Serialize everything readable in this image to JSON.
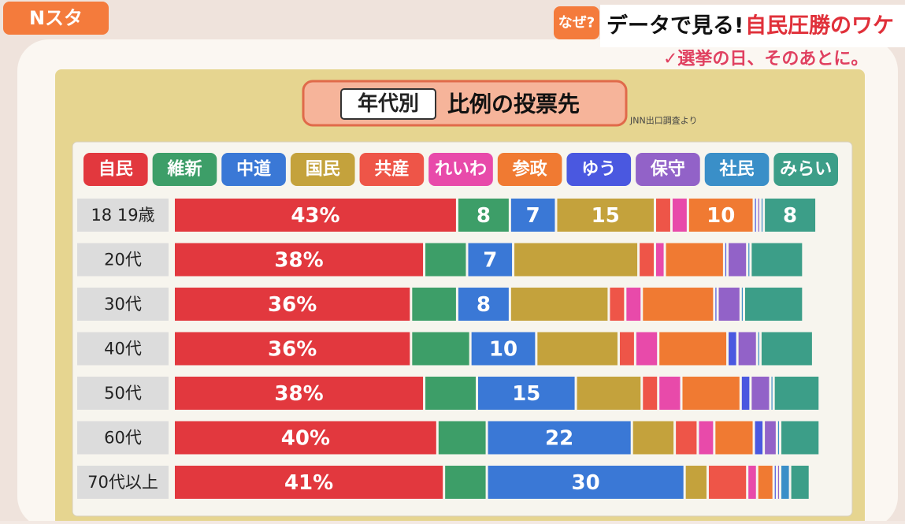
{
  "overlay": {
    "logo": "Nスタ",
    "question": "なぜ?",
    "headline_lead": "データで見る!",
    "headline_accent": "自民圧勝のワケ",
    "tagline": "✓選挙の日、そのあとに。"
  },
  "chart_data": {
    "type": "stacked-bar",
    "orientation": "horizontal",
    "title_tag": "年代別",
    "title": "比例の投票先",
    "source": "JNN出口調査より",
    "categories": [
      "18 19歳",
      "20代",
      "30代",
      "40代",
      "50代",
      "60代",
      "70代以上"
    ],
    "series": [
      {
        "name": "自民",
        "color": "#e2383e",
        "values": [
          43,
          38,
          36,
          36,
          38,
          40,
          41
        ],
        "value_labels": [
          "43%",
          "38%",
          "36%",
          "36%",
          "38%",
          "40%",
          "41%"
        ]
      },
      {
        "name": "維新",
        "color": "#3d9e68",
        "values": [
          8,
          6.5,
          7,
          9,
          8,
          7.5,
          6.5
        ],
        "value_labels": [
          "8",
          null,
          null,
          null,
          null,
          null,
          null
        ]
      },
      {
        "name": "中道",
        "color": "#3a78d6",
        "values": [
          7,
          7,
          8,
          10,
          15,
          22,
          30
        ],
        "value_labels": [
          "7",
          "7",
          "8",
          "10",
          "15",
          "22",
          "30"
        ]
      },
      {
        "name": "国民",
        "color": "#c4a23c",
        "values": [
          15,
          19,
          15,
          12.5,
          10,
          6.5,
          3.5
        ],
        "value_labels": [
          "15",
          null,
          null,
          null,
          null,
          null,
          null
        ]
      },
      {
        "name": "共産",
        "color": "#ee5548",
        "values": [
          2.5,
          2.5,
          2.5,
          2.5,
          2.5,
          3.5,
          6
        ],
        "value_labels": [
          null,
          null,
          null,
          null,
          null,
          null,
          null
        ]
      },
      {
        "name": "れいわ",
        "color": "#e84aaa",
        "values": [
          2.5,
          1.5,
          2.5,
          3.5,
          3.5,
          2.5,
          1.5
        ],
        "value_labels": [
          null,
          null,
          null,
          null,
          null,
          null,
          null
        ]
      },
      {
        "name": "参政",
        "color": "#f07a32",
        "values": [
          10,
          9,
          11,
          10.5,
          9,
          6,
          2.5
        ],
        "value_labels": [
          "10",
          null,
          null,
          null,
          null,
          null,
          null
        ]
      },
      {
        "name": "ゆう",
        "color": "#4a58e0",
        "values": [
          0.5,
          0.5,
          0.5,
          1.5,
          1.5,
          1.5,
          0.5
        ],
        "value_labels": [
          null,
          null,
          null,
          null,
          null,
          null,
          null
        ]
      },
      {
        "name": "保守",
        "color": "#9262c8",
        "values": [
          0.5,
          3,
          3.5,
          3,
          3,
          2,
          0.5
        ],
        "value_labels": [
          null,
          null,
          null,
          null,
          null,
          null,
          null
        ]
      },
      {
        "name": "社民",
        "color": "#3a8fc8",
        "values": [
          0.5,
          0.5,
          0.5,
          0.5,
          0.5,
          0.5,
          1.5
        ],
        "value_labels": [
          null,
          null,
          null,
          null,
          null,
          null,
          null
        ]
      },
      {
        "name": "みらい",
        "color": "#3c9e88",
        "values": [
          8,
          8,
          9,
          8,
          7,
          6,
          3
        ],
        "value_labels": [
          "8",
          null,
          null,
          null,
          null,
          null,
          null
        ]
      }
    ]
  }
}
